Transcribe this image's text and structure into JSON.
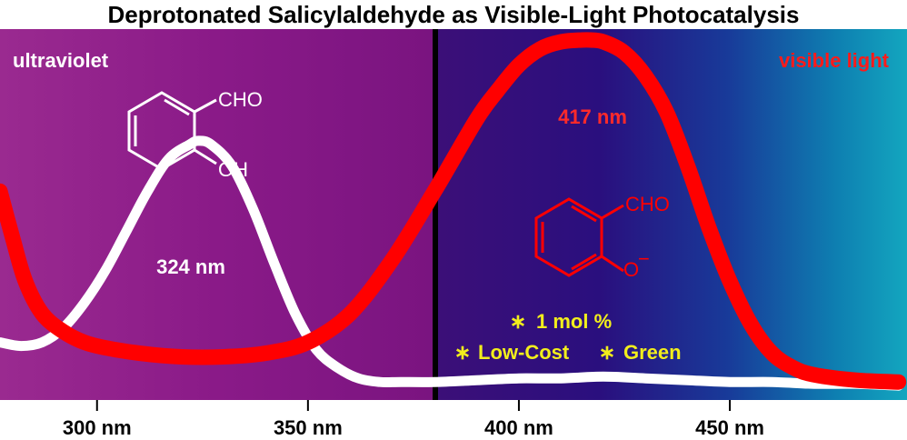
{
  "title": "Deprotonated Salicylaldehyde as Visible-Light Photocatalysis",
  "regions": {
    "uv_label": "ultraviolet",
    "vis_label": "visible light"
  },
  "molecules": {
    "neutral": {
      "group": "CHO",
      "oh": "OH"
    },
    "anion": {
      "group": "CHO",
      "o": "O",
      "charge": "−"
    }
  },
  "features": {
    "line1": "1 mol %",
    "line2a": "Low-Cost",
    "line2b": "Green",
    "bullet": "∗"
  },
  "colors": {
    "uv": "#8e1b86",
    "visible_start": "#3b1080",
    "visible_end": "#11a3c0",
    "neutral_curve": "#ffffff",
    "anion_curve": "#ff0000",
    "divider": "#000000",
    "feature_text": "#f2ee1c"
  },
  "chart_data": {
    "type": "line",
    "title": "Deprotonated Salicylaldehyde as Visible-Light Photocatalysis",
    "xlabel": "",
    "ylabel": "",
    "xlim": [
      277,
      492
    ],
    "ylim": [
      0,
      1.0
    ],
    "xticks": [
      300,
      350,
      400,
      450
    ],
    "xtick_labels": [
      "300 nm",
      "350 nm",
      "400 nm",
      "450 nm"
    ],
    "divider_x": 380,
    "grid": false,
    "series": [
      {
        "name": "",
        "color": "white",
        "peak_label": "324 nm",
        "peak": 324,
        "x": [
          277,
          282,
          287,
          292,
          297,
          302,
          307,
          312,
          317,
          322,
          324,
          327,
          332,
          337,
          342,
          347,
          352,
          357,
          362,
          367,
          372,
          380,
          390,
          400,
          410,
          420,
          430,
          440,
          450,
          460,
          470,
          480,
          490
        ],
        "y": [
          0.16,
          0.15,
          0.16,
          0.2,
          0.27,
          0.36,
          0.47,
          0.58,
          0.67,
          0.71,
          0.72,
          0.71,
          0.65,
          0.53,
          0.38,
          0.24,
          0.14,
          0.09,
          0.06,
          0.05,
          0.05,
          0.05,
          0.055,
          0.06,
          0.06,
          0.065,
          0.06,
          0.055,
          0.05,
          0.05,
          0.045,
          0.045,
          0.04
        ]
      },
      {
        "name": "",
        "color": "red",
        "peak_label": "417 nm",
        "peak": 417,
        "x": [
          277,
          280,
          283,
          287,
          292,
          297,
          302,
          310,
          320,
          330,
          340,
          350,
          360,
          370,
          380,
          390,
          395,
          400,
          405,
          410,
          415,
          417,
          420,
          425,
          430,
          435,
          440,
          445,
          450,
          455,
          460,
          465,
          470,
          480,
          490
        ],
        "y": [
          0.58,
          0.45,
          0.33,
          0.24,
          0.19,
          0.16,
          0.145,
          0.13,
          0.12,
          0.12,
          0.13,
          0.16,
          0.24,
          0.39,
          0.58,
          0.78,
          0.86,
          0.93,
          0.975,
          0.995,
          1.0,
          1.0,
          0.995,
          0.965,
          0.9,
          0.8,
          0.65,
          0.48,
          0.33,
          0.21,
          0.13,
          0.09,
          0.07,
          0.055,
          0.05
        ]
      }
    ]
  }
}
